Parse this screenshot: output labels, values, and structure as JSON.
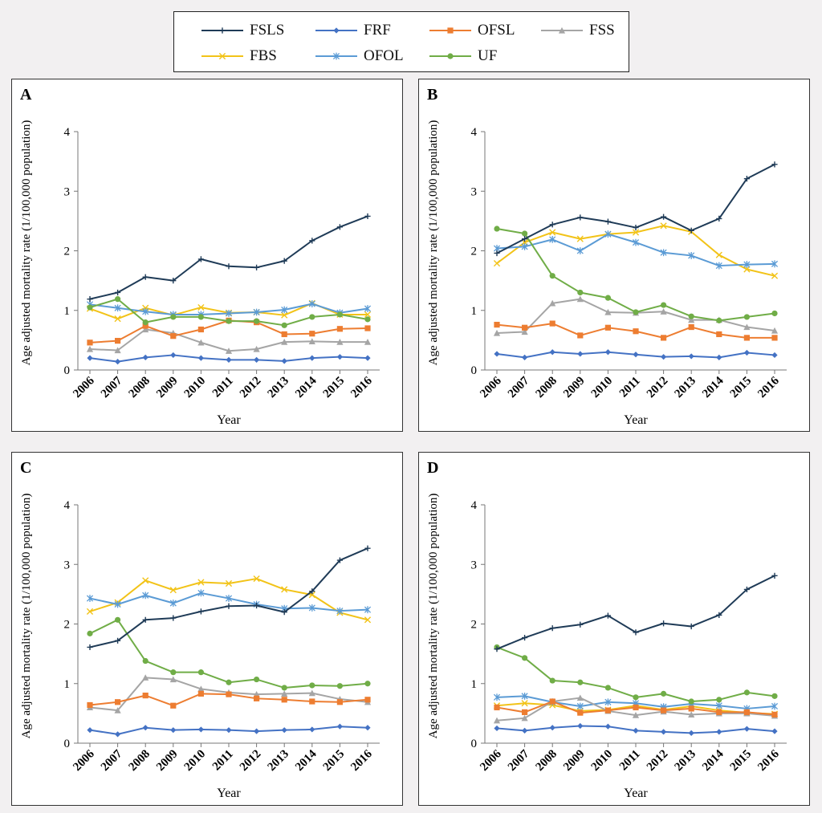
{
  "legend": {
    "items": [
      {
        "name": "FSLS",
        "color": "#1f3b57",
        "marker": "plus"
      },
      {
        "name": "FRF",
        "color": "#4472c4",
        "marker": "diamond"
      },
      {
        "name": "OFSL",
        "color": "#ed7d31",
        "marker": "square"
      },
      {
        "name": "FSS",
        "color": "#a5a5a5",
        "marker": "triangle"
      },
      {
        "name": "FBS",
        "color": "#f2c318",
        "marker": "x"
      },
      {
        "name": "OFOL",
        "color": "#5b9bd5",
        "marker": "star"
      },
      {
        "name": "UF",
        "color": "#70ad47",
        "marker": "circle"
      }
    ]
  },
  "chart_data": [
    {
      "type": "line",
      "label": "A",
      "categories": [
        "2006",
        "2007",
        "2008",
        "2009",
        "2010",
        "2011",
        "2012",
        "2013",
        "2014",
        "2015",
        "2016"
      ],
      "xlabel": "Year",
      "ylabel": "Age adjusted mortality rate (1/100,000 population)",
      "ylim": [
        0,
        4
      ],
      "yticks": [
        "0",
        "1",
        "2",
        "3",
        "4"
      ],
      "series": [
        {
          "name": "FSLS",
          "values": [
            1.19,
            1.3,
            1.56,
            1.5,
            1.86,
            1.74,
            1.72,
            1.83,
            2.17,
            2.4,
            2.58
          ]
        },
        {
          "name": "FRF",
          "values": [
            0.2,
            0.14,
            0.21,
            0.25,
            0.2,
            0.17,
            0.17,
            0.15,
            0.2,
            0.22,
            0.2
          ]
        },
        {
          "name": "OFSL",
          "values": [
            0.46,
            0.49,
            0.74,
            0.57,
            0.68,
            0.83,
            0.8,
            0.6,
            0.61,
            0.69,
            0.7
          ]
        },
        {
          "name": "FSS",
          "values": [
            0.35,
            0.33,
            0.68,
            0.62,
            0.46,
            0.32,
            0.35,
            0.47,
            0.48,
            0.47,
            0.47
          ]
        },
        {
          "name": "FBS",
          "values": [
            1.03,
            0.86,
            1.04,
            0.92,
            1.05,
            0.96,
            0.97,
            0.92,
            1.12,
            0.93,
            0.93
          ]
        },
        {
          "name": "OFOL",
          "values": [
            1.1,
            1.04,
            0.98,
            0.93,
            0.93,
            0.95,
            0.97,
            1.01,
            1.11,
            0.96,
            1.03
          ]
        },
        {
          "name": "UF",
          "values": [
            1.05,
            1.19,
            0.8,
            0.89,
            0.89,
            0.82,
            0.82,
            0.75,
            0.89,
            0.93,
            0.85
          ]
        }
      ]
    },
    {
      "type": "line",
      "label": "B",
      "categories": [
        "2006",
        "2007",
        "2008",
        "2009",
        "2010",
        "2011",
        "2012",
        "2013",
        "2014",
        "2015",
        "2016"
      ],
      "xlabel": "Year",
      "ylabel": "Age adjusted mortality rate (1/100,000 population)",
      "ylim": [
        0,
        4
      ],
      "yticks": [
        "0",
        "1",
        "2",
        "3",
        "4"
      ],
      "series": [
        {
          "name": "FSLS",
          "values": [
            1.96,
            2.2,
            2.44,
            2.56,
            2.49,
            2.39,
            2.57,
            2.34,
            2.54,
            3.21,
            3.45
          ]
        },
        {
          "name": "FRF",
          "values": [
            0.27,
            0.21,
            0.3,
            0.27,
            0.3,
            0.26,
            0.22,
            0.23,
            0.21,
            0.29,
            0.25
          ]
        },
        {
          "name": "OFSL",
          "values": [
            0.76,
            0.71,
            0.78,
            0.58,
            0.71,
            0.65,
            0.54,
            0.72,
            0.6,
            0.54,
            0.54
          ]
        },
        {
          "name": "FSS",
          "values": [
            0.62,
            0.64,
            1.12,
            1.19,
            0.97,
            0.96,
            0.98,
            0.84,
            0.84,
            0.72,
            0.66
          ]
        },
        {
          "name": "FBS",
          "values": [
            1.79,
            2.14,
            2.31,
            2.2,
            2.28,
            2.31,
            2.42,
            2.32,
            1.93,
            1.69,
            1.58
          ]
        },
        {
          "name": "OFOL",
          "values": [
            2.04,
            2.07,
            2.19,
            2.0,
            2.28,
            2.14,
            1.97,
            1.92,
            1.75,
            1.77,
            1.78
          ]
        },
        {
          "name": "UF",
          "values": [
            2.37,
            2.29,
            1.58,
            1.3,
            1.21,
            0.97,
            1.09,
            0.9,
            0.83,
            0.89,
            0.95
          ]
        }
      ]
    },
    {
      "type": "line",
      "label": "C",
      "categories": [
        "2006",
        "2007",
        "2008",
        "2009",
        "2010",
        "2011",
        "2012",
        "2013",
        "2014",
        "2015",
        "2016"
      ],
      "xlabel": "Year",
      "ylabel": "Age adjusted mortality rate (1/100,000 population)",
      "ylim": [
        0,
        4
      ],
      "yticks": [
        "0",
        "1",
        "2",
        "3",
        "4"
      ],
      "series": [
        {
          "name": "FSLS",
          "values": [
            1.61,
            1.72,
            2.07,
            2.1,
            2.21,
            2.3,
            2.31,
            2.2,
            2.55,
            3.07,
            3.27
          ]
        },
        {
          "name": "FRF",
          "values": [
            0.22,
            0.15,
            0.26,
            0.22,
            0.23,
            0.22,
            0.2,
            0.22,
            0.23,
            0.28,
            0.26
          ]
        },
        {
          "name": "OFSL",
          "values": [
            0.64,
            0.69,
            0.8,
            0.63,
            0.83,
            0.82,
            0.75,
            0.73,
            0.7,
            0.69,
            0.73
          ]
        },
        {
          "name": "FSS",
          "values": [
            0.6,
            0.55,
            1.1,
            1.07,
            0.91,
            0.85,
            0.82,
            0.83,
            0.84,
            0.74,
            0.69
          ]
        },
        {
          "name": "FBS",
          "values": [
            2.21,
            2.36,
            2.73,
            2.57,
            2.7,
            2.68,
            2.76,
            2.58,
            2.49,
            2.19,
            2.07
          ]
        },
        {
          "name": "OFOL",
          "values": [
            2.43,
            2.33,
            2.48,
            2.35,
            2.52,
            2.43,
            2.33,
            2.26,
            2.27,
            2.22,
            2.24
          ]
        },
        {
          "name": "UF",
          "values": [
            1.84,
            2.07,
            1.38,
            1.19,
            1.19,
            1.02,
            1.07,
            0.93,
            0.97,
            0.96,
            1.0
          ]
        }
      ]
    },
    {
      "type": "line",
      "label": "D",
      "categories": [
        "2006",
        "2007",
        "2008",
        "2009",
        "2010",
        "2011",
        "2012",
        "2013",
        "2014",
        "2015",
        "2016"
      ],
      "xlabel": "Year",
      "ylabel": "Age adjusted mortality rate (1/100,000 population)",
      "ylim": [
        0,
        4
      ],
      "yticks": [
        "0",
        "1",
        "2",
        "3",
        "4"
      ],
      "series": [
        {
          "name": "FSLS",
          "values": [
            1.58,
            1.77,
            1.93,
            1.99,
            2.14,
            1.86,
            2.01,
            1.96,
            2.15,
            2.58,
            2.81
          ]
        },
        {
          "name": "FRF",
          "values": [
            0.25,
            0.21,
            0.26,
            0.29,
            0.28,
            0.21,
            0.19,
            0.17,
            0.19,
            0.24,
            0.2
          ]
        },
        {
          "name": "OFSL",
          "values": [
            0.6,
            0.52,
            0.7,
            0.51,
            0.55,
            0.6,
            0.55,
            0.58,
            0.52,
            0.52,
            0.48
          ]
        },
        {
          "name": "FSS",
          "values": [
            0.38,
            0.42,
            0.7,
            0.76,
            0.54,
            0.47,
            0.53,
            0.48,
            0.5,
            0.5,
            0.46
          ]
        },
        {
          "name": "FBS",
          "values": [
            0.63,
            0.67,
            0.64,
            0.54,
            0.56,
            0.63,
            0.56,
            0.62,
            0.55,
            0.51,
            0.49
          ]
        },
        {
          "name": "OFOL",
          "values": [
            0.77,
            0.79,
            0.69,
            0.62,
            0.69,
            0.67,
            0.61,
            0.66,
            0.63,
            0.58,
            0.62
          ]
        },
        {
          "name": "UF",
          "values": [
            1.61,
            1.43,
            1.05,
            1.02,
            0.93,
            0.77,
            0.83,
            0.7,
            0.73,
            0.85,
            0.79
          ]
        }
      ]
    }
  ]
}
